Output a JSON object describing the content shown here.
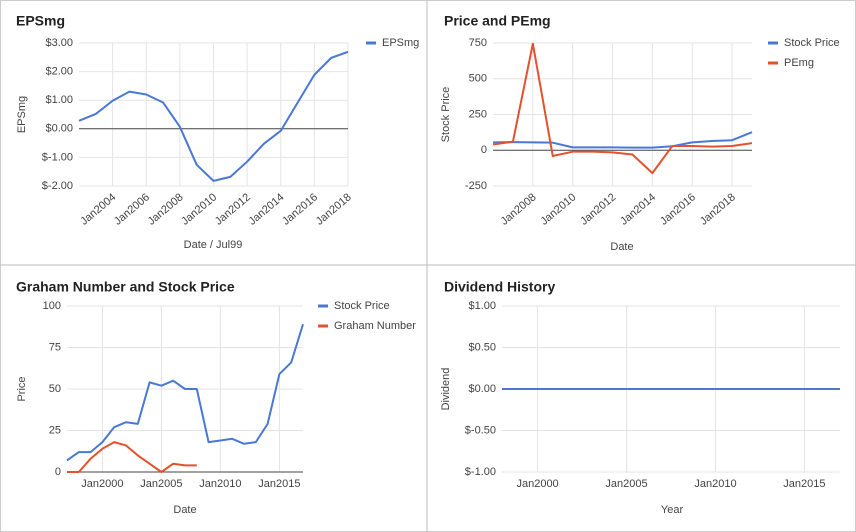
{
  "chart_data": [
    {
      "type": "line",
      "title": "EPSmg",
      "x_label": "Date / Jul99",
      "y_label": "EPSmg",
      "x": [
        2002,
        2003,
        2004,
        2005,
        2006,
        2007,
        2008,
        2009,
        2010,
        2011,
        2012,
        2013,
        2014,
        2015,
        2016,
        2017,
        2018
      ],
      "series": [
        {
          "name": "EPSmg",
          "color": "#4a78d6",
          "values": [
            0.28,
            0.52,
            0.98,
            1.3,
            1.2,
            0.92,
            0.07,
            -1.26,
            -1.82,
            -1.68,
            -1.15,
            -0.52,
            -0.07,
            0.91,
            1.89,
            2.48,
            2.69
          ]
        }
      ],
      "xlim": [
        2002,
        2018
      ],
      "xticks": [
        {
          "value": 2004,
          "label": "Jan2004"
        },
        {
          "value": 2006,
          "label": "Jan2006"
        },
        {
          "value": 2008,
          "label": "Jan2008"
        },
        {
          "value": 2010,
          "label": "Jan2010"
        },
        {
          "value": 2012,
          "label": "Jan2012"
        },
        {
          "value": 2014,
          "label": "Jan2014"
        },
        {
          "value": 2016,
          "label": "Jan2016"
        },
        {
          "value": 2018,
          "label": "Jan2018"
        }
      ],
      "ylim": [
        -2,
        3
      ],
      "yticks": [
        {
          "value": 3,
          "label": "$3.00"
        },
        {
          "value": 2,
          "label": "$2.00"
        },
        {
          "value": 1,
          "label": "$1.00"
        },
        {
          "value": 0,
          "label": "$0.00"
        },
        {
          "value": -1,
          "label": "$-1.00"
        },
        {
          "value": -2,
          "label": "$-2.00"
        }
      ],
      "grid": true,
      "legend": "right"
    },
    {
      "type": "line",
      "title": "Price and PEmg",
      "x_label": "Date",
      "y_label": "Stock Price",
      "x": [
        2006,
        2007,
        2008,
        2009,
        2010,
        2011,
        2012,
        2013,
        2014,
        2015,
        2016,
        2017,
        2018,
        2019
      ],
      "series": [
        {
          "name": "Stock Price",
          "color": "#4a78d6",
          "values": [
            55,
            57,
            55,
            53,
            20,
            20,
            20,
            18,
            18,
            28,
            55,
            65,
            70,
            126
          ]
        },
        {
          "name": "PEmg",
          "color": "#e5512d",
          "values": [
            40,
            60,
            745,
            -40,
            -10,
            -10,
            -15,
            -30,
            -160,
            30,
            30,
            25,
            30,
            50
          ]
        }
      ],
      "xlim": [
        2006,
        2019
      ],
      "xticks": [
        {
          "value": 2008,
          "label": "Jan2008"
        },
        {
          "value": 2010,
          "label": "Jan2010"
        },
        {
          "value": 2012,
          "label": "Jan2012"
        },
        {
          "value": 2014,
          "label": "Jan2014"
        },
        {
          "value": 2016,
          "label": "Jan2016"
        },
        {
          "value": 2018,
          "label": "Jan2018"
        }
      ],
      "ylim": [
        -250,
        750
      ],
      "yticks": [
        750,
        500,
        250,
        0,
        -250
      ],
      "grid": true,
      "legend": "right"
    },
    {
      "type": "line",
      "title": "Graham Number and Stock Price",
      "x_label": "Date",
      "y_label": "Price",
      "x": [
        1997,
        1998,
        1999,
        2000,
        2001,
        2002,
        2003,
        2004,
        2005,
        2006,
        2007,
        2008,
        2009,
        2010,
        2011,
        2012,
        2013,
        2014,
        2015,
        2016,
        2017
      ],
      "series": [
        {
          "name": "Stock Price",
          "color": "#4a78d6",
          "values": [
            7,
            12,
            12,
            18,
            27,
            30,
            29,
            54,
            52,
            55,
            50,
            50,
            18,
            19,
            20,
            17,
            18,
            29,
            59,
            66,
            89
          ]
        },
        {
          "name": "Graham Number",
          "color": "#e5512d",
          "values": [
            0,
            0,
            8,
            14,
            18,
            16,
            10,
            5,
            0,
            5,
            4,
            4,
            null,
            null,
            null,
            null,
            null,
            null,
            null,
            null,
            null
          ]
        }
      ],
      "xlim": [
        1997,
        2017
      ],
      "xticks": [
        {
          "value": 2000,
          "label": "Jan2000"
        },
        {
          "value": 2005,
          "label": "Jan2005"
        },
        {
          "value": 2010,
          "label": "Jan2010"
        },
        {
          "value": 2015,
          "label": "Jan2015"
        }
      ],
      "ylim": [
        0,
        100
      ],
      "yticks": [
        100,
        75,
        50,
        25,
        0
      ],
      "grid": true,
      "legend": "right"
    },
    {
      "type": "line",
      "title": "Dividend History",
      "x_label": "Year",
      "y_label": "Dividend",
      "x": [
        1998,
        1999,
        2000,
        2001,
        2002,
        2003,
        2004,
        2005,
        2006,
        2007,
        2008,
        2009,
        2010,
        2011,
        2012,
        2013,
        2014,
        2015,
        2016,
        2017
      ],
      "series": [
        {
          "color": "#4a78d6",
          "values": [
            0,
            0,
            0,
            0,
            0,
            0,
            0,
            0,
            0,
            0,
            0,
            0,
            0,
            0,
            0,
            0,
            0,
            0,
            0,
            0
          ]
        }
      ],
      "xlim": [
        1998,
        2017
      ],
      "xticks": [
        {
          "value": 2000,
          "label": "Jan2000"
        },
        {
          "value": 2005,
          "label": "Jan2005"
        },
        {
          "value": 2010,
          "label": "Jan2010"
        },
        {
          "value": 2015,
          "label": "Jan2015"
        }
      ],
      "ylim": [
        -1,
        1
      ],
      "yticks": [
        {
          "value": 1,
          "label": "$1.00"
        },
        {
          "value": 0.5,
          "label": "$0.50"
        },
        {
          "value": 0,
          "label": "$0.00"
        },
        {
          "value": -0.5,
          "label": "$-0.50"
        },
        {
          "value": -1,
          "label": "$-1.00"
        }
      ],
      "grid": true
    }
  ]
}
